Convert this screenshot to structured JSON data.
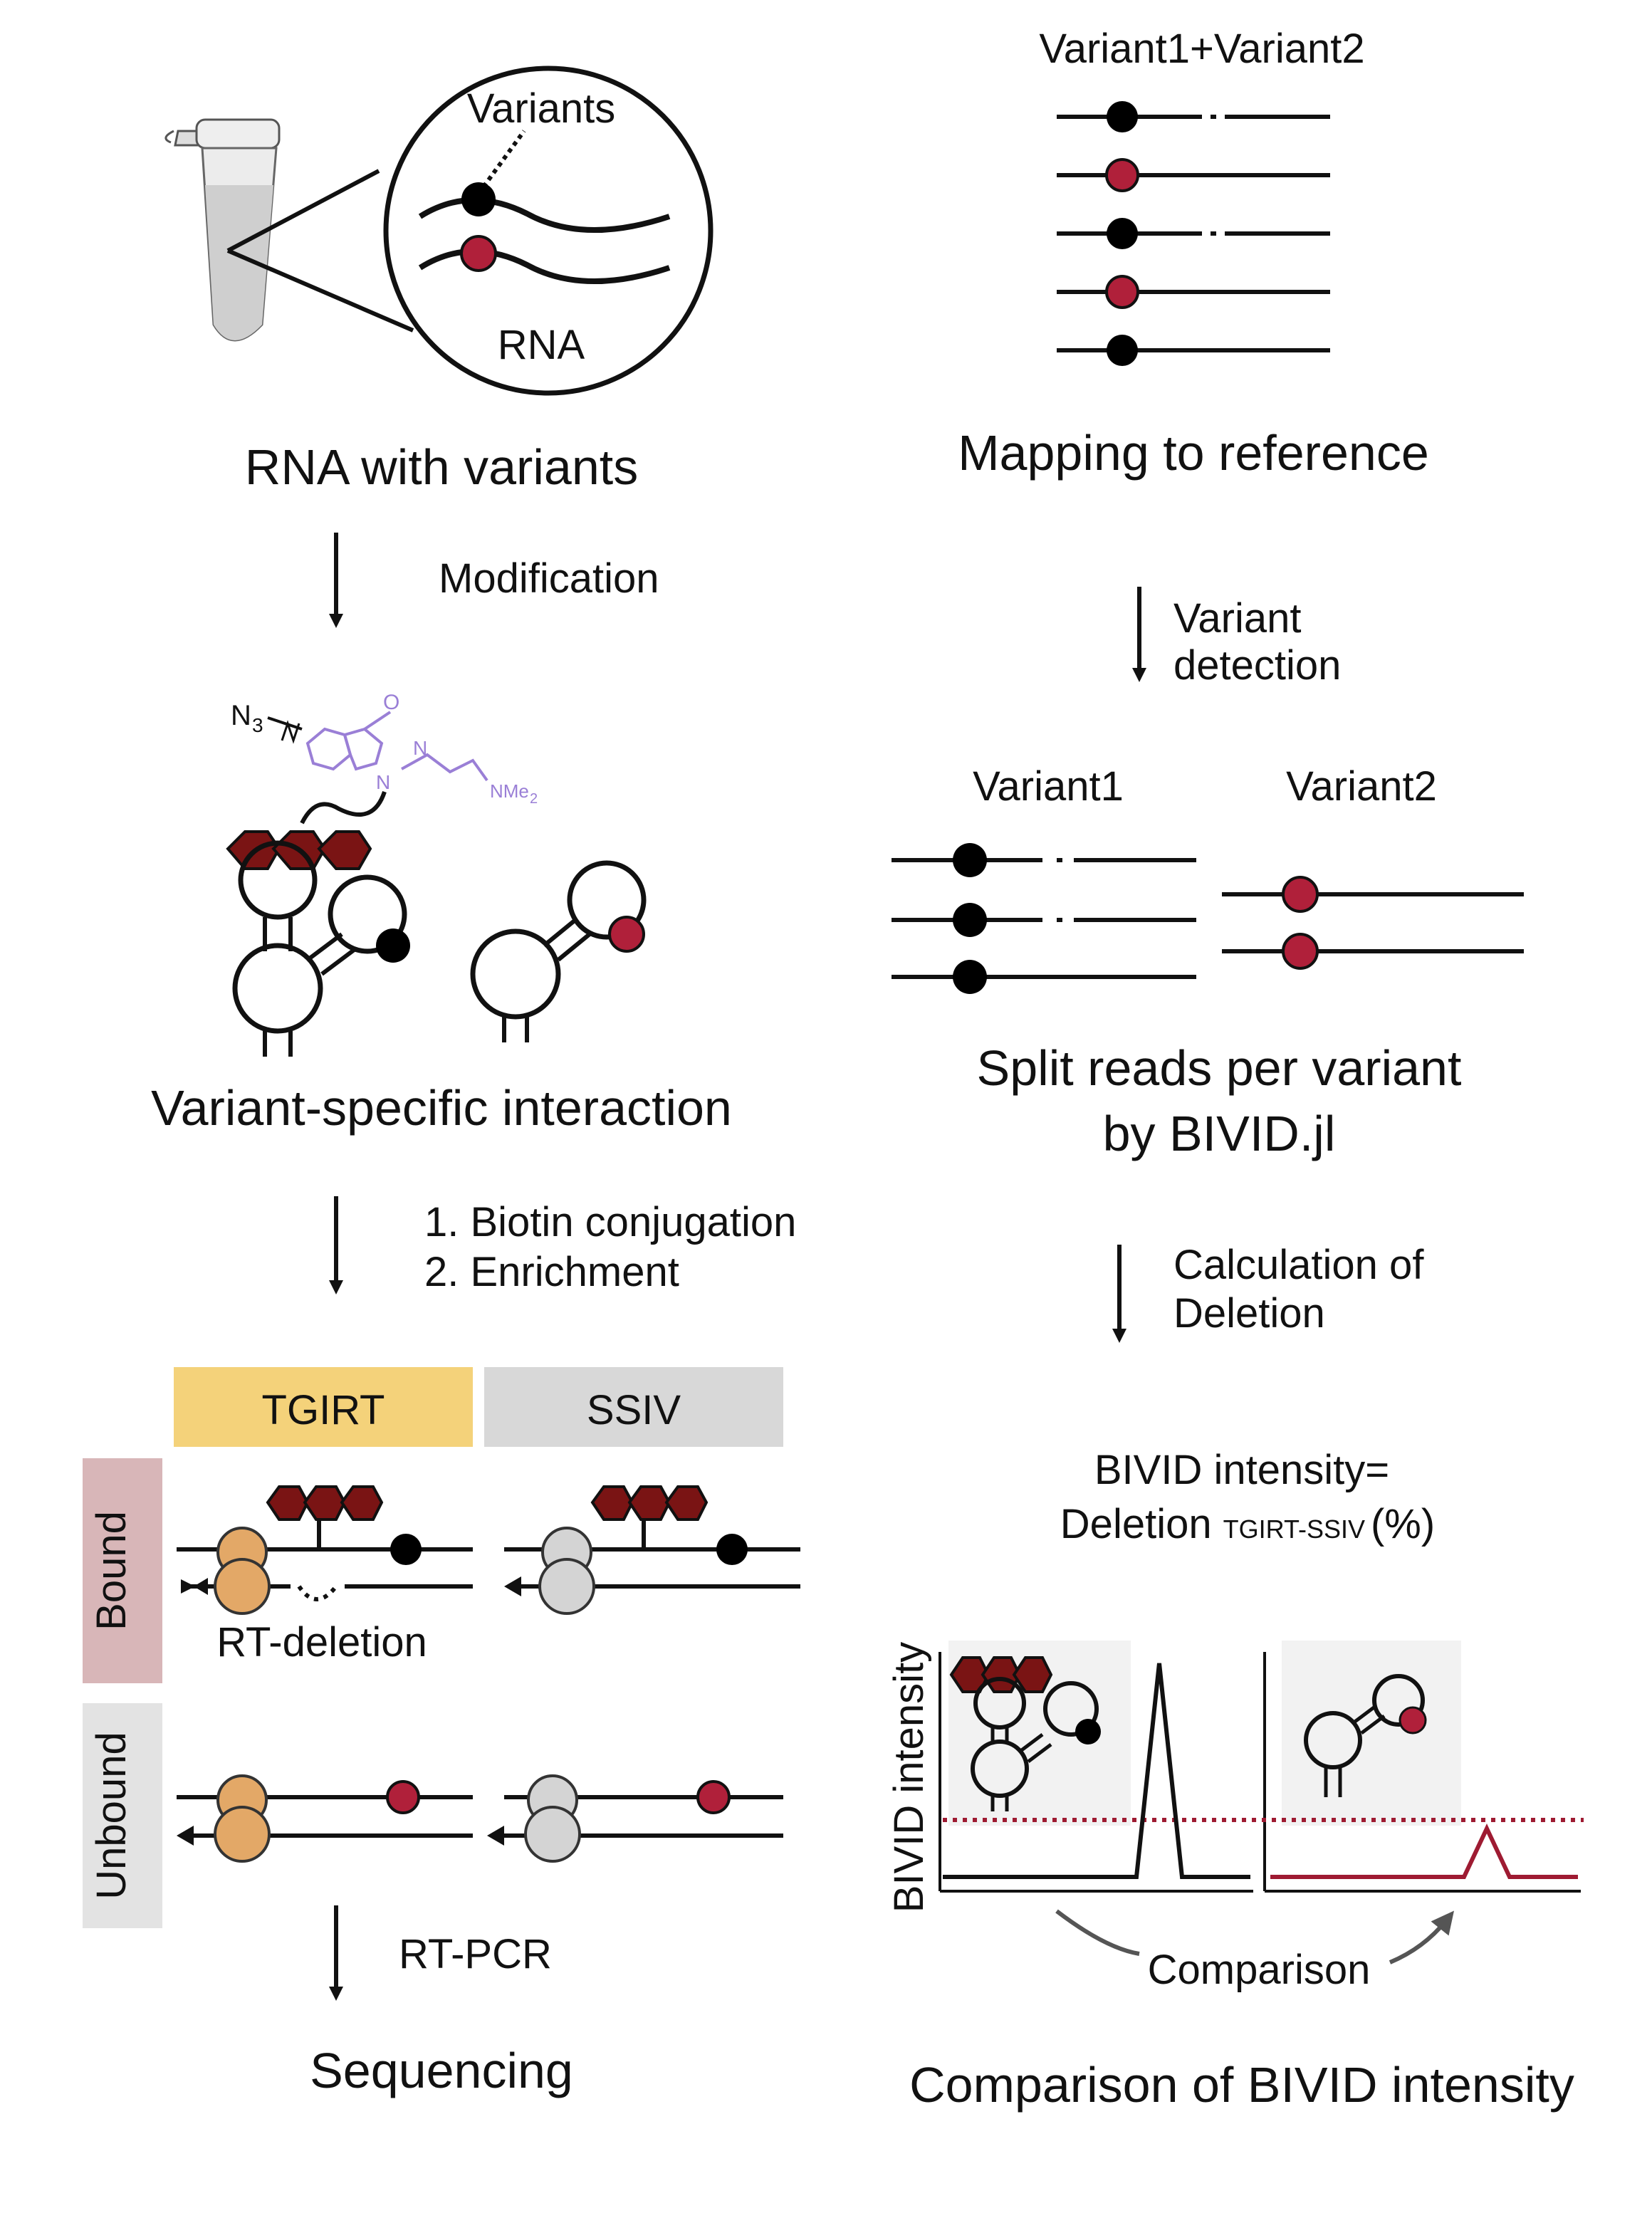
{
  "colors": {
    "ink": "#111111",
    "variant_black": "#000000",
    "variant_red": "#b0203a",
    "ligand_hex": "#7a1414",
    "ligand_purple": "#9a7fd6",
    "tgirt_header": "#f4d27a",
    "ssiv_header": "#d8d8d8",
    "bound_label_bg": "#d8b6b8",
    "unbound_label_bg": "#e3e3e3",
    "tgirt_enzyme": "#e3a867",
    "ssiv_enzyme": "#d4d4d4",
    "threshold": "#9e1b32",
    "inset_bg": "#f2f2f2"
  },
  "left": {
    "tube_zoom": {
      "variants_label": "Variants",
      "rna_label": "RNA"
    },
    "step1_title": "RNA with variants",
    "arrow1_label": "Modification",
    "ligand": {
      "n3": "N",
      "n3_sub": "3",
      "o": "O",
      "n_top": "N",
      "n_bottom": "N",
      "nme2": "NMe",
      "nme2_sub": "2"
    },
    "step2_title": "Variant-specific interaction",
    "arrow2_line1": "1. Biotin conjugation",
    "arrow2_line2": "2. Enrichment",
    "tgirt_header": "TGIRT",
    "ssiv_header": "SSIV",
    "bound_label": "Bound",
    "unbound_label": "Unbound",
    "rt_deletion": "RT-deletion",
    "arrow3_label": "RT-PCR",
    "step3_title": "Sequencing"
  },
  "right": {
    "header": "Variant1+Variant2",
    "step1_title": "Mapping to reference",
    "arrow1_line1": "Variant",
    "arrow1_line2": "detection",
    "variant1_label": "Variant1",
    "variant2_label": "Variant2",
    "step2_line1": "Split reads per variant",
    "step2_line2": "by BIVID.jl",
    "arrow2_line1": "Calculation of",
    "arrow2_line2": "Deletion",
    "formula_line1": "BIVID intensity=",
    "formula_main": "Deletion",
    "formula_sub": "TGIRT-SSIV",
    "formula_pct": "(%)",
    "y_axis_label": "BIVID intensity",
    "comparison_label": "Comparison",
    "step3_title": "Comparison of BIVID intensity"
  }
}
